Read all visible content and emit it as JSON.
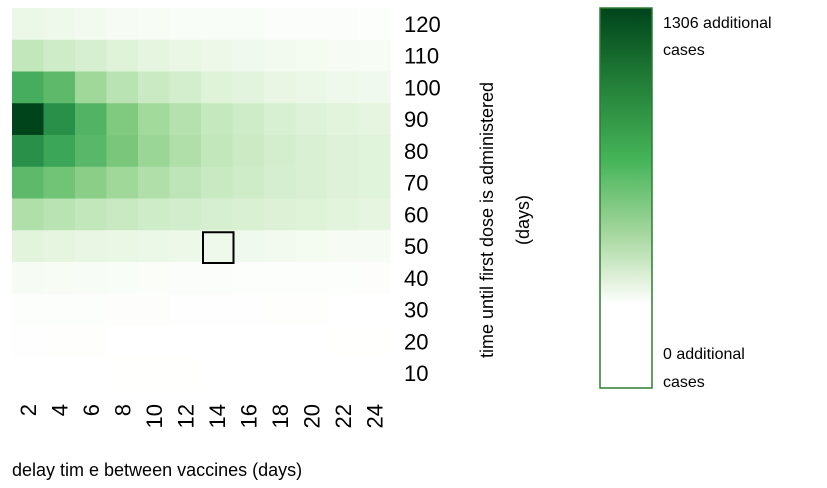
{
  "chart_data": {
    "type": "heatmap",
    "x_ticks": [
      "2",
      "4",
      "6",
      "8",
      "10",
      "12",
      "14",
      "16",
      "18",
      "20",
      "22",
      "24"
    ],
    "y_ticks": [
      "120",
      "110",
      "100",
      "90",
      "80",
      "70",
      "60",
      "50",
      "40",
      "30",
      "20",
      "10"
    ],
    "xlabel": "delay tim e between vaccines (days)",
    "ylabel_line1": "time until first dose is administered",
    "ylabel_line2": "(days)",
    "values": [
      [
        120,
        100,
        80,
        60,
        50,
        40,
        40,
        40,
        30,
        30,
        30,
        20
      ],
      [
        400,
        320,
        260,
        200,
        160,
        130,
        110,
        90,
        80,
        70,
        60,
        50
      ],
      [
        1000,
        900,
        600,
        450,
        350,
        280,
        200,
        170,
        140,
        120,
        100,
        90
      ],
      [
        1306,
        1150,
        950,
        750,
        580,
        470,
        380,
        310,
        250,
        210,
        180,
        160
      ],
      [
        1150,
        1050,
        920,
        780,
        620,
        500,
        400,
        330,
        280,
        240,
        210,
        190
      ],
      [
        900,
        820,
        700,
        600,
        500,
        420,
        360,
        310,
        270,
        240,
        210,
        190
      ],
      [
        500,
        450,
        400,
        360,
        320,
        290,
        260,
        240,
        220,
        200,
        180,
        160
      ],
      [
        180,
        160,
        140,
        130,
        120,
        110,
        100,
        90,
        80,
        70,
        60,
        60
      ],
      [
        60,
        50,
        45,
        40,
        35,
        30,
        28,
        25,
        22,
        20,
        18,
        16
      ],
      [
        25,
        20,
        18,
        16,
        14,
        12,
        10,
        10,
        8,
        8,
        6,
        6
      ],
      [
        10,
        8,
        8,
        6,
        6,
        5,
        5,
        4,
        4,
        4,
        3,
        3
      ],
      [
        5,
        4,
        4,
        3,
        3,
        3,
        2,
        2,
        2,
        2,
        2,
        2
      ]
    ],
    "highlight": {
      "x": "14",
      "y": "50"
    },
    "colorbar": {
      "min": 0,
      "max": 1306,
      "max_label_line1": "1306 additional",
      "max_label_line2": "cases",
      "min_label_line1": "0 additional",
      "min_label_line2": "cases",
      "colors": {
        "dark": "#00441b",
        "mid": "#41ab5d",
        "light": "#c7e9c0",
        "white": "#ffffff"
      }
    }
  }
}
